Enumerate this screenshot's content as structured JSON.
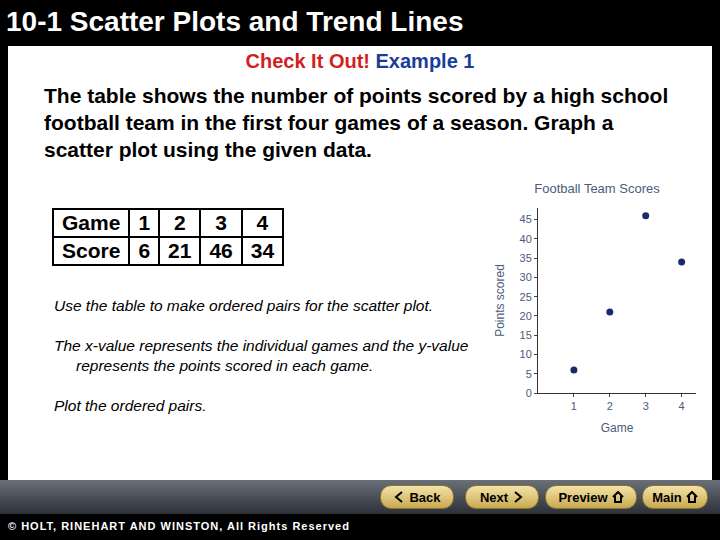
{
  "header": {
    "title": "10-1 Scatter Plots and Trend Lines"
  },
  "subtitle": {
    "label": "Check It Out!",
    "example": "Example 1"
  },
  "problem": "The table shows the number of points scored by a high school football team in the first four games of a season. Graph a scatter plot using the given data.",
  "table": {
    "rows": [
      [
        "Game",
        "1",
        "2",
        "3",
        "4"
      ],
      [
        "Score",
        "6",
        "21",
        "46",
        "34"
      ]
    ]
  },
  "notes": [
    "Use the table to make ordered pairs for the scatter plot.",
    "The x-value represents the individual games and the y-value represents the points scored in each game.",
    "Plot the ordered pairs."
  ],
  "chart_data": {
    "type": "scatter",
    "title": "Football Team Scores",
    "x_label": "Game",
    "y_label": "Points scored",
    "x": [
      1,
      2,
      3,
      4
    ],
    "values": [
      6,
      21,
      46,
      34
    ],
    "color": "#1c2a6b",
    "marker": "circle",
    "xlim": [
      0,
      4.4
    ],
    "xticks": [
      1,
      2,
      3,
      4
    ],
    "ylim": [
      0,
      48
    ],
    "yticks": [
      0,
      5,
      10,
      15,
      20,
      25,
      30,
      35,
      40,
      45
    ],
    "grid": false
  },
  "buttons": [
    "Back",
    "Next",
    "Preview",
    "Main"
  ],
  "footer": "© HOLT, RINEHART AND WINSTON, All Rights Reserved"
}
